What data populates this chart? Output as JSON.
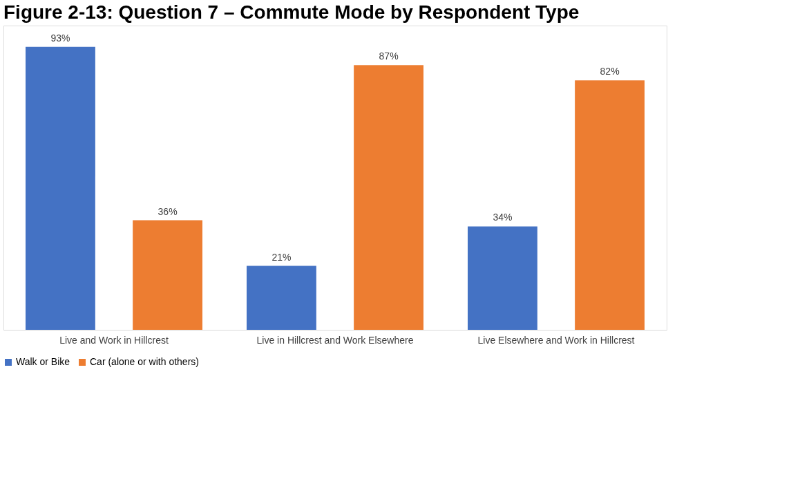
{
  "chart_data": {
    "type": "bar",
    "title": "Figure 2-13: Question 7 – Commute Mode by Respondent Type",
    "categories": [
      "Live and Work in Hillcrest",
      "Live in Hillcrest and Work Elsewhere",
      "Live Elsewhere and Work in Hillcrest"
    ],
    "series": [
      {
        "name": "Walk or Bike",
        "color": "#4472c4",
        "values": [
          93,
          21,
          34
        ],
        "value_labels": [
          "93%",
          "21%",
          "34%"
        ]
      },
      {
        "name": "Car (alone or with others)",
        "color": "#ed7d31",
        "values": [
          36,
          87,
          82
        ],
        "value_labels": [
          "36%",
          "87%",
          "82%"
        ]
      }
    ],
    "legend": "bottom",
    "grid": false
  }
}
